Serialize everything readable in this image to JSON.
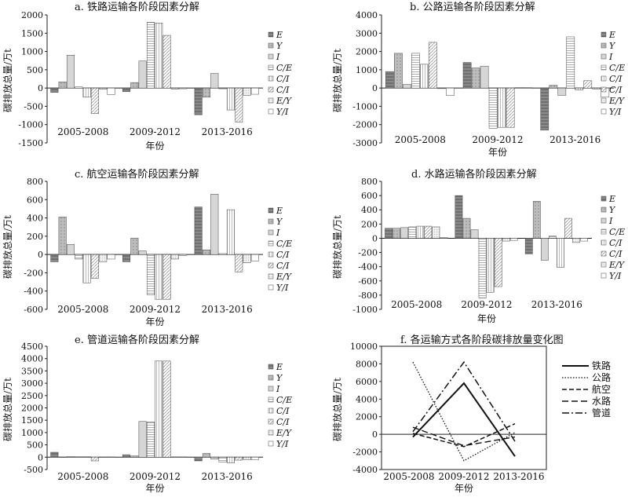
{
  "chart_data": [
    {
      "type": "bar",
      "title": "a. 铁路运输各阶段因素分解",
      "xlabel": "年份",
      "ylabel": "碳排放总量/万t",
      "categories": [
        "2005-2008",
        "2009-2012",
        "2013-2016"
      ],
      "ylim": [
        -1500,
        2000
      ],
      "yticks": [
        -1500,
        -1000,
        -500,
        0,
        500,
        1000,
        1500,
        2000
      ],
      "series": [
        {
          "name": "E",
          "values": [
            -120,
            -100,
            -730
          ]
        },
        {
          "name": "Y",
          "values": [
            170,
            150,
            -250
          ]
        },
        {
          "name": "I",
          "values": [
            900,
            740,
            400
          ]
        },
        {
          "name": "C/E",
          "values": [
            30,
            1800,
            -20
          ]
        },
        {
          "name": "C/I",
          "values": [
            -250,
            1780,
            -600
          ]
        },
        {
          "name": "C/I",
          "values": [
            -700,
            1440,
            -930
          ]
        },
        {
          "name": "E/Y",
          "values": [
            -30,
            -30,
            -200
          ]
        },
        {
          "name": "Y/I",
          "values": [
            -180,
            -20,
            -170
          ]
        }
      ]
    },
    {
      "type": "bar",
      "title": "b. 公路运输各阶段因素分解",
      "xlabel": "年份",
      "ylabel": "碳排放总量/万t",
      "categories": [
        "2005-2008",
        "2009-2012",
        "2013-2016"
      ],
      "ylim": [
        -3000,
        4000
      ],
      "yticks": [
        -3000,
        -2000,
        -1000,
        0,
        1000,
        2000,
        3000,
        4000
      ],
      "series": [
        {
          "name": "E",
          "values": [
            900,
            1400,
            -2300
          ]
        },
        {
          "name": "Y",
          "values": [
            1900,
            1100,
            150
          ]
        },
        {
          "name": "I",
          "values": [
            200,
            1200,
            -400
          ]
        },
        {
          "name": "C/E",
          "values": [
            1900,
            -2200,
            2800
          ]
        },
        {
          "name": "C/I",
          "values": [
            1300,
            -2150,
            -100
          ]
        },
        {
          "name": "C/I",
          "values": [
            2500,
            -2150,
            400
          ]
        },
        {
          "name": "E/Y",
          "values": [
            -30,
            30,
            -50
          ]
        },
        {
          "name": "Y/I",
          "values": [
            -400,
            30,
            -500
          ]
        }
      ]
    },
    {
      "type": "bar",
      "title": "c. 航空运输各阶段因素分解",
      "xlabel": "年份",
      "ylabel": "碳排放总量/万t",
      "categories": [
        "2005-2008",
        "2009-2012",
        "2013-2016"
      ],
      "ylim": [
        -600,
        800
      ],
      "yticks": [
        -600,
        -400,
        -200,
        0,
        200,
        400,
        600,
        800
      ],
      "series": [
        {
          "name": "E",
          "values": [
            -80,
            -80,
            520
          ]
        },
        {
          "name": "Y",
          "values": [
            410,
            180,
            50
          ]
        },
        {
          "name": "I",
          "values": [
            110,
            40,
            660
          ]
        },
        {
          "name": "C/E",
          "values": [
            -50,
            -440,
            10
          ]
        },
        {
          "name": "C/I",
          "values": [
            -310,
            -490,
            490
          ]
        },
        {
          "name": "C/I",
          "values": [
            -260,
            -490,
            -190
          ]
        },
        {
          "name": "E/Y",
          "values": [
            -80,
            -50,
            -90
          ]
        },
        {
          "name": "Y/I",
          "values": [
            -50,
            -10,
            -70
          ]
        }
      ]
    },
    {
      "type": "bar",
      "title": "d. 水路运输各阶段因素分解",
      "xlabel": "年份",
      "ylabel": "碳排放总量/万t",
      "categories": [
        "2005-2008",
        "2009-2012",
        "2013-2016"
      ],
      "ylim": [
        -1000,
        800
      ],
      "yticks": [
        -1000,
        -800,
        -600,
        -400,
        -200,
        0,
        200,
        400,
        600,
        800
      ],
      "series": [
        {
          "name": "E",
          "values": [
            140,
            600,
            -220
          ]
        },
        {
          "name": "Y",
          "values": [
            140,
            280,
            520
          ]
        },
        {
          "name": "I",
          "values": [
            150,
            120,
            -310
          ]
        },
        {
          "name": "C/E",
          "values": [
            160,
            -840,
            30
          ]
        },
        {
          "name": "C/I",
          "values": [
            170,
            -760,
            -410
          ]
        },
        {
          "name": "C/I",
          "values": [
            170,
            -680,
            280
          ]
        },
        {
          "name": "E/Y",
          "values": [
            160,
            -40,
            -60
          ]
        },
        {
          "name": "Y/I",
          "values": [
            10,
            -30,
            -40
          ]
        }
      ]
    },
    {
      "type": "bar",
      "title": "e. 管道运输各阶段因素分解",
      "xlabel": "年份",
      "ylabel": "碳排放总量/万t",
      "categories": [
        "2005-2008",
        "2009-2012",
        "2013-2016"
      ],
      "ylim": [
        -500,
        4500
      ],
      "yticks": [
        -500,
        0,
        500,
        1000,
        1500,
        2000,
        2500,
        3000,
        3500,
        4000,
        4500
      ],
      "series": [
        {
          "name": "E",
          "values": [
            200,
            100,
            -150
          ]
        },
        {
          "name": "Y",
          "values": [
            10,
            50,
            150
          ]
        },
        {
          "name": "I",
          "values": [
            30,
            1450,
            -80
          ]
        },
        {
          "name": "C/E",
          "values": [
            20,
            1430,
            -200
          ]
        },
        {
          "name": "C/I",
          "values": [
            20,
            3900,
            -230
          ]
        },
        {
          "name": "C/I",
          "values": [
            -150,
            3900,
            -120
          ]
        },
        {
          "name": "E/Y",
          "values": [
            10,
            10,
            -100
          ]
        },
        {
          "name": "Y/I",
          "values": [
            10,
            10,
            -100
          ]
        }
      ]
    },
    {
      "type": "line",
      "title": "f. 各运输方式各阶段碳排放量变化图",
      "xlabel": "年份",
      "ylabel": "碳排放总量/万t",
      "categories": [
        "2005-2008",
        "2009-2012",
        "2013-2016"
      ],
      "ylim": [
        -4000,
        10000
      ],
      "yticks": [
        -4000,
        -2000,
        0,
        2000,
        4000,
        6000,
        8000,
        10000
      ],
      "series": [
        {
          "name": "铁路",
          "values": [
            -300,
            5800,
            -2500
          ]
        },
        {
          "name": "公路",
          "values": [
            8200,
            -3000,
            200
          ]
        },
        {
          "name": "航空",
          "values": [
            100,
            -1400,
            1200
          ]
        },
        {
          "name": "水路",
          "values": [
            800,
            -1300,
            -300
          ]
        },
        {
          "name": "管道",
          "values": [
            300,
            8200,
            -800
          ]
        }
      ]
    }
  ]
}
